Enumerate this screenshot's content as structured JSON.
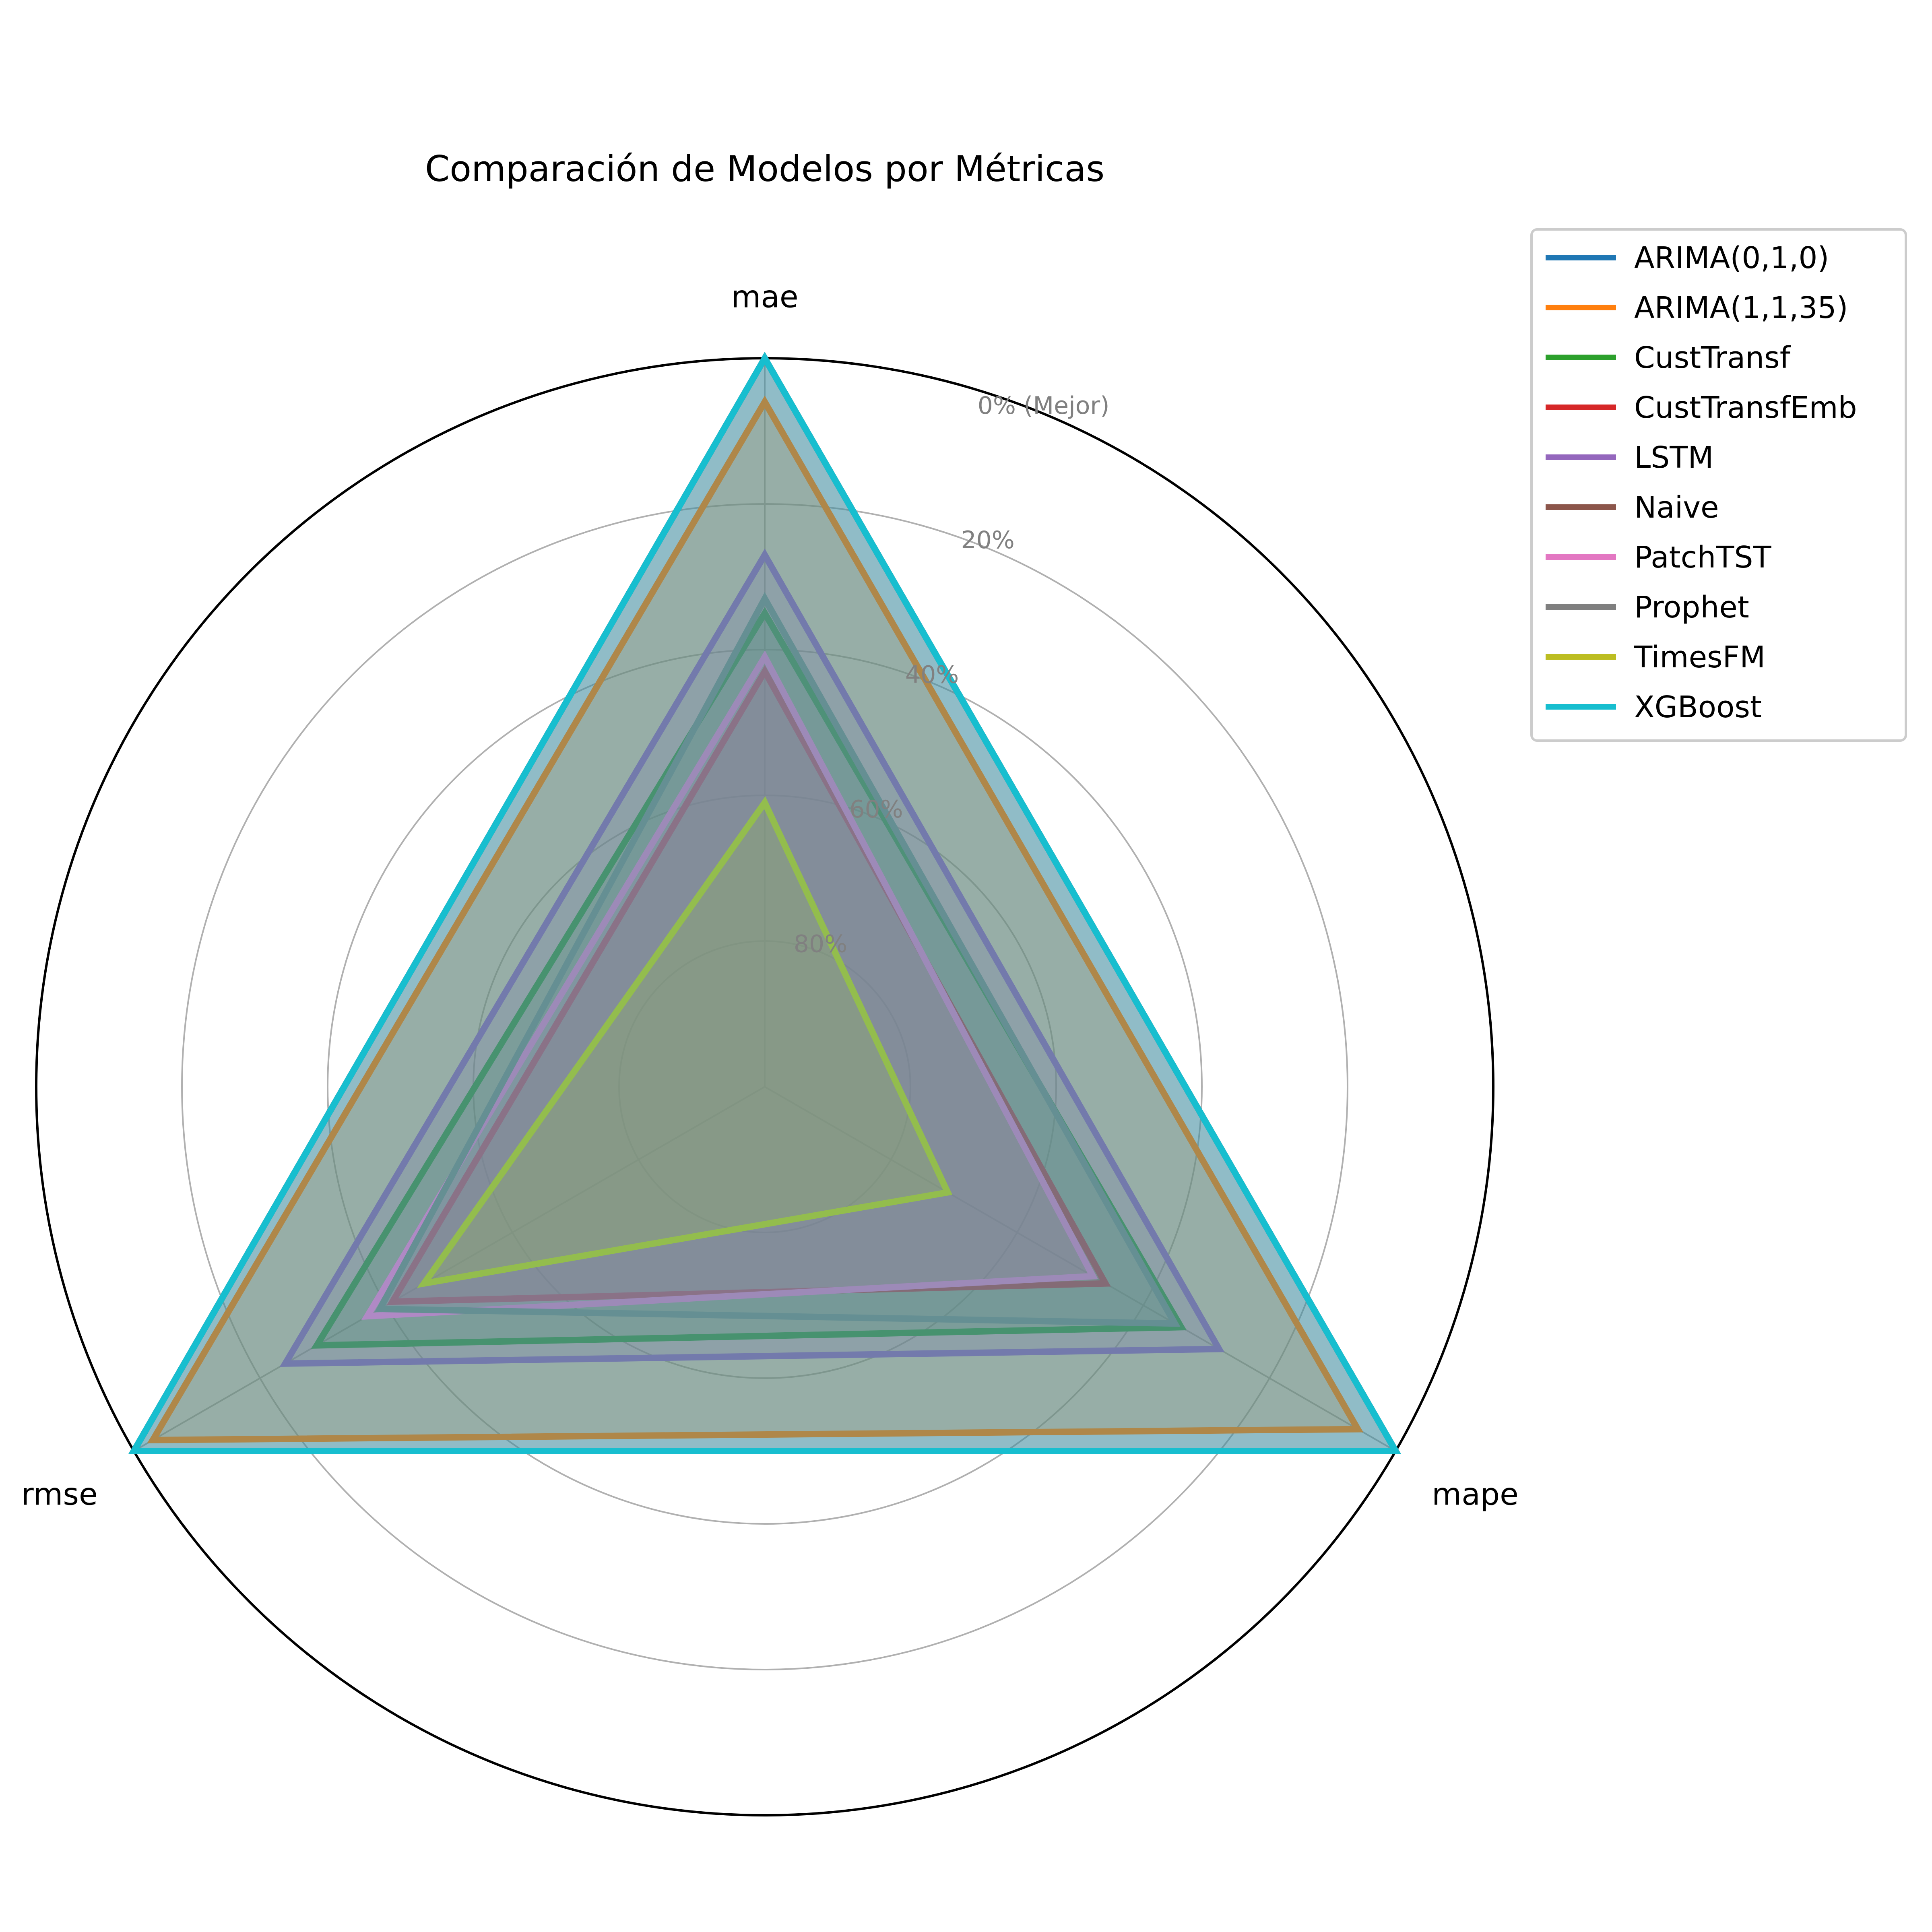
{
  "chart_data": {
    "type": "radar",
    "title": "Comparación de Modelos por Métricas",
    "axes": [
      "mae",
      "mape",
      "rmse"
    ],
    "r_tick_labels": [
      "80%",
      "60%",
      "40%",
      "20%",
      "0% (Mejor)"
    ],
    "r_ticks": [
      0.2,
      0.4,
      0.6,
      0.8,
      1.0
    ],
    "r_range": [
      0,
      1.0
    ],
    "grid": true,
    "legend_position": "top-right",
    "series": [
      {
        "name": "ARIMA(0,1,0)",
        "color": "#1f77b4",
        "values": [
          1.0,
          1.0,
          1.0
        ]
      },
      {
        "name": "ARIMA(1,1,35)",
        "color": "#ff7f0e",
        "values": [
          0.94,
          0.94,
          0.97
        ]
      },
      {
        "name": "CustTransf",
        "color": "#2ca02c",
        "values": [
          0.65,
          0.66,
          0.71
        ]
      },
      {
        "name": "CustTransfEmb",
        "color": "#d62728",
        "values": [
          0.57,
          0.54,
          0.59
        ]
      },
      {
        "name": "LSTM",
        "color": "#9467bd",
        "values": [
          0.73,
          0.72,
          0.76
        ]
      },
      {
        "name": "Naive",
        "color": "#8c564b",
        "values": [
          1.0,
          1.0,
          1.0
        ]
      },
      {
        "name": "PatchTST",
        "color": "#e377c2",
        "values": [
          0.59,
          0.52,
          0.63
        ]
      },
      {
        "name": "Prophet",
        "color": "#7f7f7f",
        "values": [
          0.67,
          0.65,
          0.61
        ]
      },
      {
        "name": "TimesFM",
        "color": "#bcbd22",
        "values": [
          0.39,
          0.29,
          0.54
        ]
      },
      {
        "name": "XGBoost",
        "color": "#17becf",
        "values": [
          1.0,
          1.0,
          1.0
        ]
      }
    ]
  }
}
